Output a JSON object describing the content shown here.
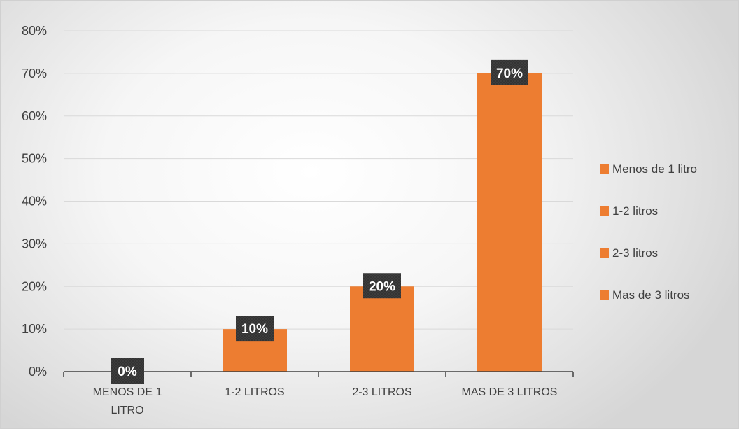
{
  "chart_data": {
    "type": "bar",
    "title": "",
    "xlabel": "",
    "ylabel": "",
    "categories": [
      "MENOS DE 1\nLITRO",
      "1-2 LITROS",
      "2-3 LITROS",
      "MAS DE 3 LITROS"
    ],
    "values": [
      0,
      10,
      20,
      70
    ],
    "data_labels": [
      "0%",
      "10%",
      "20%",
      "70%"
    ],
    "ylim": [
      0,
      80
    ],
    "y_ticks": [
      0,
      10,
      20,
      30,
      40,
      50,
      60,
      70,
      80
    ],
    "y_tick_labels": [
      "0%",
      "10%",
      "20%",
      "30%",
      "40%",
      "50%",
      "60%",
      "70%",
      "80%"
    ],
    "grid": true,
    "legend": {
      "position": "right",
      "entries": [
        "Menos de 1 litro",
        "1-2 litros",
        "2-3 litros",
        "Mas de 3 litros"
      ]
    },
    "colors": {
      "bar": "#ED7D31",
      "data_label_bg": "#3a3a3a",
      "grid": "#d9d9d9",
      "axis": "#404040"
    }
  }
}
